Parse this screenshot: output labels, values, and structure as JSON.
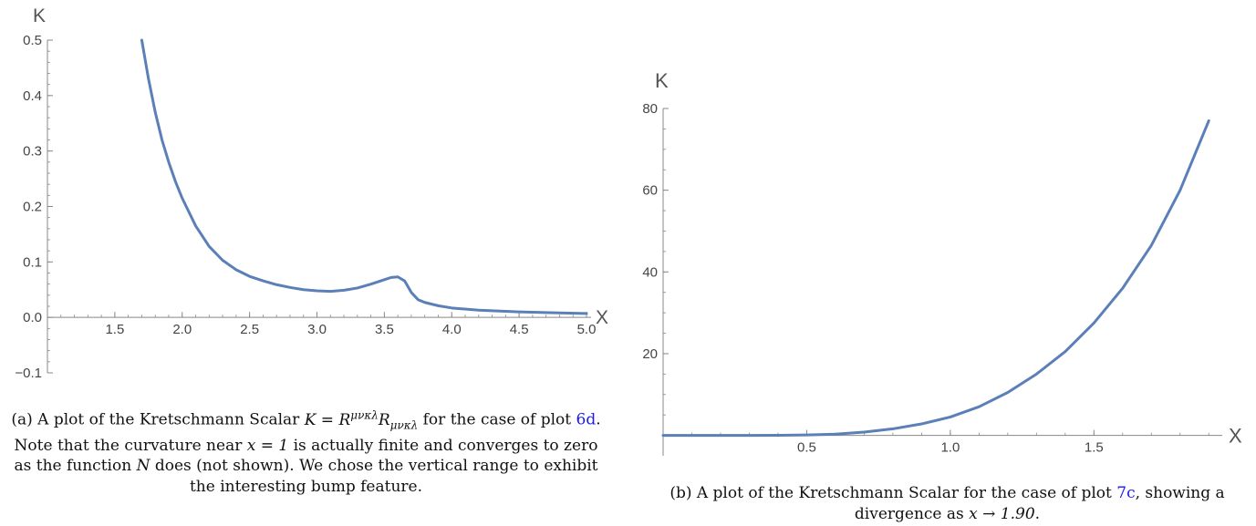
{
  "chart_data": [
    {
      "type": "line",
      "xlabel": "x",
      "ylabel": "K",
      "xlim": [
        1.0,
        5.0
      ],
      "ylim": [
        -0.1,
        0.5
      ],
      "x_ticks": [
        "1.5",
        "2.0",
        "2.5",
        "3.0",
        "3.5",
        "4.0",
        "4.5",
        "5.0"
      ],
      "y_ticks": [
        "-0.1",
        "0.0",
        "0.1",
        "0.2",
        "0.3",
        "0.4",
        "0.5"
      ],
      "series": [
        {
          "color": "#5b7fb7",
          "x": [
            1.7,
            1.75,
            1.8,
            1.85,
            1.9,
            1.95,
            2.0,
            2.1,
            2.2,
            2.3,
            2.4,
            2.5,
            2.6,
            2.7,
            2.8,
            2.9,
            3.0,
            3.1,
            3.2,
            3.3,
            3.4,
            3.5,
            3.55,
            3.6,
            3.65,
            3.7,
            3.75,
            3.8,
            3.9,
            4.0,
            4.2,
            4.5,
            4.8,
            5.0
          ],
          "y": [
            0.5,
            0.43,
            0.37,
            0.32,
            0.28,
            0.245,
            0.215,
            0.165,
            0.128,
            0.103,
            0.086,
            0.074,
            0.066,
            0.059,
            0.054,
            0.05,
            0.048,
            0.047,
            0.049,
            0.053,
            0.06,
            0.068,
            0.072,
            0.073,
            0.066,
            0.045,
            0.032,
            0.027,
            0.021,
            0.017,
            0.013,
            0.01,
            0.008,
            0.007
          ]
        }
      ]
    },
    {
      "type": "line",
      "xlabel": "x",
      "ylabel": "K",
      "xlim": [
        0.0,
        1.95
      ],
      "ylim": [
        -5,
        80
      ],
      "x_ticks": [
        "0.5",
        "1.0",
        "1.5"
      ],
      "y_ticks": [
        "20",
        "40",
        "60",
        "80"
      ],
      "series": [
        {
          "color": "#5b7fb7",
          "x": [
            0.0,
            0.1,
            0.2,
            0.3,
            0.4,
            0.5,
            0.6,
            0.7,
            0.8,
            0.9,
            1.0,
            1.1,
            1.2,
            1.3,
            1.4,
            1.5,
            1.6,
            1.7,
            1.8,
            1.9
          ],
          "y": [
            0.0,
            0.0,
            0.0,
            0.0,
            0.03,
            0.1,
            0.3,
            0.8,
            1.6,
            2.8,
            4.5,
            7.0,
            10.5,
            15.0,
            20.5,
            27.5,
            36.0,
            46.5,
            60.0,
            77.0
          ]
        }
      ]
    }
  ],
  "captions": {
    "a": {
      "prefix": "(a) A plot of the Kretschmann Scalar ",
      "formula": "K = R^{μνκλ}R_{μνκλ}",
      "t1": " for the case of plot ",
      "ref": "6d",
      "t2": ". Note that the curvature near ",
      "cond": "x = 1",
      "t3": " is actually finite and converges to zero as the function ",
      "fn": "N",
      "t4": " does (not shown). We chose the vertical range to exhibit the interesting bump feature."
    },
    "b": {
      "prefix": "(b) A plot of the Kretschmann Scalar for the case of plot ",
      "ref": "7c",
      "t1": ", showing a divergence as ",
      "cond": "x → 1.90",
      "t2": "."
    }
  }
}
